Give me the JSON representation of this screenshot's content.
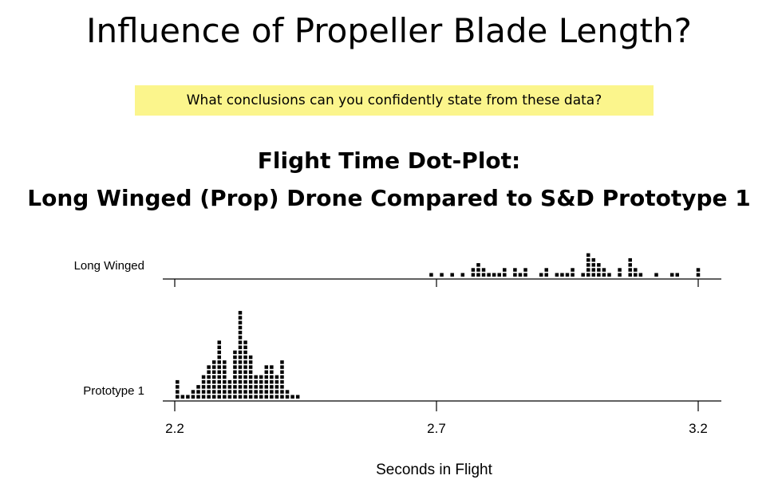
{
  "slide": {
    "title": "Influence of Propeller Blade Length?",
    "question": "What conclusions can you confidently state from these data?"
  },
  "chart_data": {
    "type": "scatter",
    "subtype": "dot-plot",
    "title_lines": [
      "Flight Time Dot-Plot:",
      "Long Winged (Prop) Drone Compared to S&D Prototype 1"
    ],
    "xlabel": "Seconds in Flight",
    "x_ticks": [
      "2.2",
      "2.7",
      "3.2"
    ],
    "xlim": [
      2.2,
      3.2
    ],
    "categories": [
      "Long Winged",
      "Prototype 1"
    ],
    "series": [
      {
        "name": "Long Winged",
        "points": [
          [
            2.69,
            1
          ],
          [
            2.71,
            1
          ],
          [
            2.73,
            1
          ],
          [
            2.75,
            1
          ],
          [
            2.77,
            1
          ],
          [
            2.77,
            2
          ],
          [
            2.78,
            1
          ],
          [
            2.78,
            2
          ],
          [
            2.78,
            3
          ],
          [
            2.79,
            1
          ],
          [
            2.79,
            2
          ],
          [
            2.8,
            1
          ],
          [
            2.81,
            1
          ],
          [
            2.82,
            1
          ],
          [
            2.83,
            1
          ],
          [
            2.83,
            2
          ],
          [
            2.85,
            1
          ],
          [
            2.85,
            2
          ],
          [
            2.86,
            1
          ],
          [
            2.87,
            1
          ],
          [
            2.87,
            2
          ],
          [
            2.9,
            1
          ],
          [
            2.91,
            1
          ],
          [
            2.91,
            2
          ],
          [
            2.93,
            1
          ],
          [
            2.94,
            1
          ],
          [
            2.95,
            1
          ],
          [
            2.96,
            1
          ],
          [
            2.96,
            2
          ],
          [
            2.98,
            1
          ],
          [
            2.99,
            1
          ],
          [
            2.99,
            2
          ],
          [
            2.99,
            3
          ],
          [
            2.99,
            4
          ],
          [
            2.99,
            5
          ],
          [
            3.0,
            1
          ],
          [
            3.0,
            2
          ],
          [
            3.0,
            3
          ],
          [
            3.0,
            4
          ],
          [
            3.01,
            1
          ],
          [
            3.01,
            2
          ],
          [
            3.01,
            3
          ],
          [
            3.02,
            1
          ],
          [
            3.02,
            2
          ],
          [
            3.03,
            1
          ],
          [
            3.05,
            1
          ],
          [
            3.05,
            2
          ],
          [
            3.07,
            1
          ],
          [
            3.07,
            2
          ],
          [
            3.07,
            3
          ],
          [
            3.07,
            4
          ],
          [
            3.08,
            1
          ],
          [
            3.08,
            2
          ],
          [
            3.09,
            1
          ],
          [
            3.12,
            1
          ],
          [
            3.15,
            1
          ],
          [
            3.16,
            1
          ],
          [
            3.2,
            1
          ],
          [
            3.2,
            2
          ]
        ]
      },
      {
        "name": "Prototype 1",
        "points": [
          [
            2.205,
            1
          ],
          [
            2.205,
            2
          ],
          [
            2.205,
            3
          ],
          [
            2.205,
            4
          ],
          [
            2.215,
            1
          ],
          [
            2.225,
            1
          ],
          [
            2.235,
            1
          ],
          [
            2.235,
            2
          ],
          [
            2.245,
            1
          ],
          [
            2.245,
            2
          ],
          [
            2.245,
            3
          ],
          [
            2.255,
            1
          ],
          [
            2.255,
            2
          ],
          [
            2.255,
            3
          ],
          [
            2.255,
            4
          ],
          [
            2.255,
            5
          ],
          [
            2.265,
            1
          ],
          [
            2.265,
            2
          ],
          [
            2.265,
            3
          ],
          [
            2.265,
            4
          ],
          [
            2.265,
            5
          ],
          [
            2.265,
            6
          ],
          [
            2.265,
            7
          ],
          [
            2.275,
            1
          ],
          [
            2.275,
            2
          ],
          [
            2.275,
            3
          ],
          [
            2.275,
            4
          ],
          [
            2.275,
            5
          ],
          [
            2.275,
            6
          ],
          [
            2.275,
            7
          ],
          [
            2.275,
            8
          ],
          [
            2.285,
            1
          ],
          [
            2.285,
            2
          ],
          [
            2.285,
            3
          ],
          [
            2.285,
            4
          ],
          [
            2.285,
            5
          ],
          [
            2.285,
            6
          ],
          [
            2.285,
            7
          ],
          [
            2.285,
            8
          ],
          [
            2.285,
            9
          ],
          [
            2.285,
            10
          ],
          [
            2.285,
            11
          ],
          [
            2.285,
            12
          ],
          [
            2.295,
            1
          ],
          [
            2.295,
            2
          ],
          [
            2.295,
            3
          ],
          [
            2.295,
            4
          ],
          [
            2.295,
            5
          ],
          [
            2.295,
            6
          ],
          [
            2.295,
            7
          ],
          [
            2.295,
            8
          ],
          [
            2.305,
            1
          ],
          [
            2.305,
            2
          ],
          [
            2.305,
            3
          ],
          [
            2.305,
            4
          ],
          [
            2.315,
            1
          ],
          [
            2.315,
            2
          ],
          [
            2.315,
            3
          ],
          [
            2.315,
            4
          ],
          [
            2.315,
            5
          ],
          [
            2.315,
            6
          ],
          [
            2.315,
            7
          ],
          [
            2.315,
            8
          ],
          [
            2.315,
            9
          ],
          [
            2.315,
            10
          ],
          [
            2.325,
            1
          ],
          [
            2.325,
            2
          ],
          [
            2.325,
            3
          ],
          [
            2.325,
            4
          ],
          [
            2.325,
            5
          ],
          [
            2.325,
            6
          ],
          [
            2.325,
            7
          ],
          [
            2.325,
            8
          ],
          [
            2.325,
            9
          ],
          [
            2.325,
            10
          ],
          [
            2.325,
            11
          ],
          [
            2.325,
            12
          ],
          [
            2.325,
            13
          ],
          [
            2.325,
            14
          ],
          [
            2.325,
            15
          ],
          [
            2.325,
            16
          ],
          [
            2.325,
            17
          ],
          [
            2.325,
            18
          ],
          [
            2.335,
            1
          ],
          [
            2.335,
            2
          ],
          [
            2.335,
            3
          ],
          [
            2.335,
            4
          ],
          [
            2.335,
            5
          ],
          [
            2.335,
            6
          ],
          [
            2.335,
            7
          ],
          [
            2.335,
            8
          ],
          [
            2.335,
            9
          ],
          [
            2.335,
            10
          ],
          [
            2.335,
            11
          ],
          [
            2.335,
            12
          ],
          [
            2.345,
            1
          ],
          [
            2.345,
            2
          ],
          [
            2.345,
            3
          ],
          [
            2.345,
            4
          ],
          [
            2.345,
            5
          ],
          [
            2.345,
            6
          ],
          [
            2.345,
            7
          ],
          [
            2.345,
            8
          ],
          [
            2.345,
            9
          ],
          [
            2.355,
            1
          ],
          [
            2.355,
            2
          ],
          [
            2.355,
            3
          ],
          [
            2.355,
            4
          ],
          [
            2.355,
            5
          ],
          [
            2.365,
            1
          ],
          [
            2.365,
            2
          ],
          [
            2.365,
            3
          ],
          [
            2.365,
            4
          ],
          [
            2.365,
            5
          ],
          [
            2.375,
            1
          ],
          [
            2.375,
            2
          ],
          [
            2.375,
            3
          ],
          [
            2.375,
            4
          ],
          [
            2.375,
            5
          ],
          [
            2.375,
            6
          ],
          [
            2.375,
            7
          ],
          [
            2.385,
            1
          ],
          [
            2.385,
            2
          ],
          [
            2.385,
            3
          ],
          [
            2.385,
            4
          ],
          [
            2.385,
            5
          ],
          [
            2.385,
            6
          ],
          [
            2.385,
            7
          ],
          [
            2.395,
            1
          ],
          [
            2.395,
            2
          ],
          [
            2.395,
            3
          ],
          [
            2.395,
            4
          ],
          [
            2.395,
            5
          ],
          [
            2.405,
            1
          ],
          [
            2.405,
            2
          ],
          [
            2.405,
            3
          ],
          [
            2.405,
            4
          ],
          [
            2.405,
            5
          ],
          [
            2.405,
            6
          ],
          [
            2.405,
            7
          ],
          [
            2.405,
            8
          ],
          [
            2.415,
            1
          ],
          [
            2.415,
            2
          ],
          [
            2.425,
            1
          ],
          [
            2.435,
            1
          ]
        ]
      }
    ],
    "dot_color": "#000000"
  }
}
